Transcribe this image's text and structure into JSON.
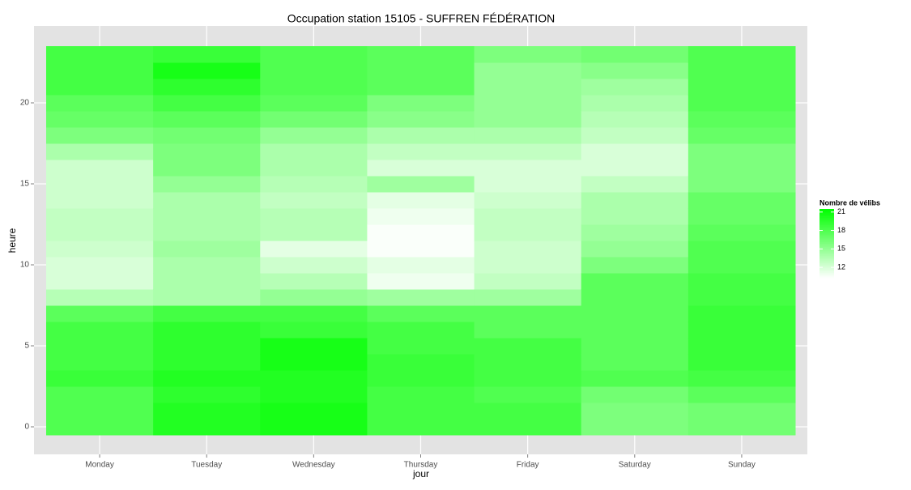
{
  "chart_data": {
    "type": "heatmap",
    "title": "Occupation station 15105 - SUFFREN FÉDÉRATION",
    "x_label": "jour",
    "y_label": "heure",
    "categories": [
      "Monday",
      "Tuesday",
      "Wednesday",
      "Thursday",
      "Friday",
      "Saturday",
      "Sunday"
    ],
    "y": [
      0,
      1,
      2,
      3,
      4,
      5,
      6,
      7,
      8,
      9,
      10,
      11,
      12,
      13,
      14,
      15,
      16,
      17,
      18,
      19,
      20,
      21,
      22,
      23
    ],
    "values": [
      [
        18,
        18,
        18,
        19,
        18.5,
        18.5,
        18.5,
        17.5,
        13.5,
        12,
        12,
        12.5,
        13,
        13,
        12.5,
        12.5,
        12.5,
        14,
        16,
        17,
        17.5,
        18.5,
        18.5,
        18.5
      ],
      [
        20,
        20,
        19.5,
        20,
        19.5,
        19.5,
        19.5,
        18.5,
        14,
        14,
        14,
        14.5,
        14,
        14,
        14,
        15,
        16,
        16,
        16.5,
        17.5,
        18.5,
        19.5,
        20.5,
        19
      ],
      [
        20.5,
        20.5,
        20,
        20,
        20.5,
        20.5,
        19,
        18.5,
        15,
        13.5,
        12.5,
        11.5,
        13.5,
        13.5,
        13,
        13.5,
        14,
        14,
        15,
        16.5,
        17.5,
        18,
        18,
        18
      ],
      [
        18.5,
        18.5,
        18.5,
        19,
        19,
        18.5,
        18.5,
        17.5,
        14.5,
        11,
        11.5,
        10.5,
        10.5,
        11,
        11.5,
        14.5,
        12,
        13,
        14,
        15.5,
        16,
        17.5,
        17.5,
        17.5
      ],
      [
        18.5,
        18.5,
        18,
        18.5,
        18.5,
        18.5,
        17.5,
        17.5,
        14.5,
        13,
        12.5,
        12.5,
        13,
        13,
        12.5,
        12,
        12,
        13,
        14,
        15,
        15,
        15,
        15,
        16
      ],
      [
        16,
        16,
        16.5,
        18,
        17.5,
        17.5,
        17.5,
        17.5,
        17.5,
        17.5,
        16,
        15,
        14.5,
        14,
        14,
        13,
        12,
        12,
        13,
        13.5,
        14,
        14.5,
        15.5,
        16.5
      ],
      [
        16.5,
        16.5,
        17.5,
        18.5,
        19,
        19,
        19,
        19,
        18.5,
        18.5,
        18,
        18,
        17.5,
        17,
        17,
        16,
        16,
        16,
        17,
        17.5,
        18,
        18,
        18,
        18
      ]
    ],
    "ylim": [
      -1.7,
      24.75
    ],
    "yticks": [
      0,
      5,
      10,
      15,
      20
    ],
    "grid": true,
    "colors": [
      "#ffffff",
      "#00ff00"
    ],
    "legend_title": "Nombre de vélibs",
    "colorlim": [
      10.3,
      21.5
    ],
    "colorticks": [
      12,
      15,
      18,
      21
    ]
  }
}
